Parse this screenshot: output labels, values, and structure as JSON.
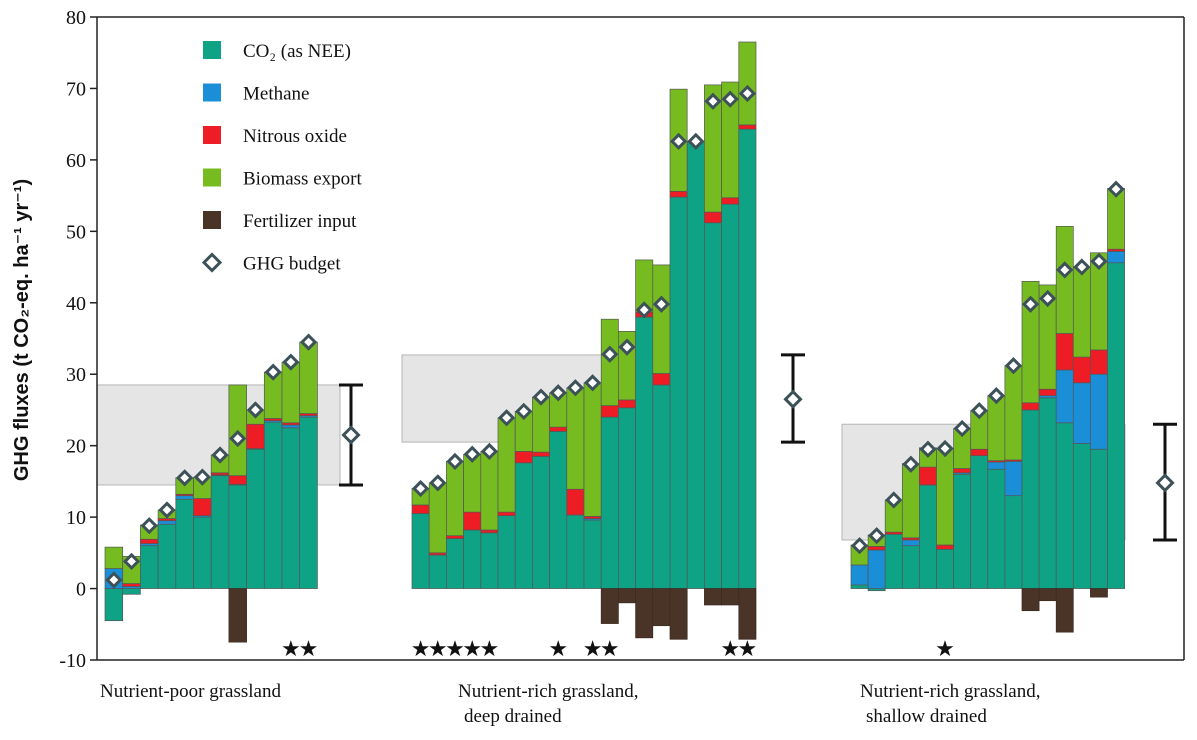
{
  "chart_data": {
    "type": "bar",
    "stacked": true,
    "ylabel": "GHG fluxes (t CO₂-eq. ha⁻¹ yr⁻¹)",
    "ylim": [
      -10,
      80
    ],
    "yticks": [
      -10,
      0,
      10,
      20,
      30,
      40,
      50,
      60,
      70,
      80
    ],
    "grid": false,
    "legend_position": "top-left",
    "legend": [
      {
        "key": "co2",
        "label": "CO₂ (as NEE)",
        "color": "#0fa386"
      },
      {
        "key": "methane",
        "label": "Methane",
        "color": "#1a8fd8"
      },
      {
        "key": "n2o",
        "label": "Nitrous oxide",
        "color": "#ee1c24"
      },
      {
        "key": "biomass",
        "label": "Biomass export",
        "color": "#76bc21"
      },
      {
        "key": "fertilizer",
        "label": "Fertilizer input",
        "color": "#4a3428"
      },
      {
        "key": "budget",
        "label": "GHG budget",
        "color": "#3d5158",
        "marker": "diamond"
      }
    ],
    "groups": [
      {
        "label_lines": [
          "Nutrient-poor grassland"
        ],
        "mean": 21.5,
        "range": [
          14.5,
          28.5
        ],
        "sites": [
          {
            "co2": -4.5,
            "methane": 2.8,
            "n2o": 0,
            "biomass": 3.0,
            "fertilizer": 0,
            "budget": 1.2,
            "star": false
          },
          {
            "co2": -0.8,
            "methane": 0.3,
            "n2o": 0.4,
            "biomass": 3.8,
            "fertilizer": 0,
            "budget": 3.8,
            "star": false
          },
          {
            "co2": 6.0,
            "methane": 0.3,
            "n2o": 0.6,
            "biomass": 2.0,
            "fertilizer": 0,
            "budget": 8.8,
            "star": false
          },
          {
            "co2": 9.0,
            "methane": 0.5,
            "n2o": 0.3,
            "biomass": 1.2,
            "fertilizer": 0,
            "budget": 11.0,
            "star": false
          },
          {
            "co2": 12.5,
            "methane": 0.5,
            "n2o": 0.2,
            "biomass": 2.3,
            "fertilizer": 0,
            "budget": 15.5,
            "star": false
          },
          {
            "co2": 10.0,
            "methane": 0.2,
            "n2o": 2.4,
            "biomass": 3.0,
            "fertilizer": 0,
            "budget": 15.6,
            "star": false
          },
          {
            "co2": 15.8,
            "methane": 0.1,
            "n2o": 0.3,
            "biomass": 2.5,
            "fertilizer": 0,
            "budget": 18.7,
            "star": false
          },
          {
            "co2": 14.5,
            "methane": 0.1,
            "n2o": 1.2,
            "biomass": 12.7,
            "fertilizer": -7.5,
            "budget": 21.0,
            "star": false
          },
          {
            "co2": 19.5,
            "methane": 0.1,
            "n2o": 3.4,
            "biomass": 2.0,
            "fertilizer": 0,
            "budget": 25.0,
            "star": false
          },
          {
            "co2": 23.3,
            "methane": 0.2,
            "n2o": 0.3,
            "biomass": 6.5,
            "fertilizer": 0,
            "budget": 30.3,
            "star": false
          },
          {
            "co2": 22.5,
            "methane": 0.4,
            "n2o": 0.3,
            "biomass": 8.5,
            "fertilizer": 0,
            "budget": 31.7,
            "star": true
          },
          {
            "co2": 24.0,
            "methane": 0.2,
            "n2o": 0.3,
            "biomass": 10.0,
            "fertilizer": 0,
            "budget": 34.5,
            "star": true
          }
        ]
      },
      {
        "label_lines": [
          "Nutrient-rich grassland,",
          "deep drained"
        ],
        "mean": 26.5,
        "range": [
          20.5,
          32.7
        ],
        "sites": [
          {
            "co2": 10.5,
            "methane": 0,
            "n2o": 1.2,
            "biomass": 2.3,
            "fertilizer": 0,
            "budget": 14.0,
            "star": true
          },
          {
            "co2": 4.7,
            "methane": 0,
            "n2o": 0.3,
            "biomass": 9.8,
            "fertilizer": 0,
            "budget": 14.8,
            "star": true
          },
          {
            "co2": 7.0,
            "methane": 0,
            "n2o": 0.4,
            "biomass": 10.4,
            "fertilizer": 0,
            "budget": 17.8,
            "star": true
          },
          {
            "co2": 8.2,
            "methane": 0,
            "n2o": 2.5,
            "biomass": 8.1,
            "fertilizer": 0,
            "budget": 18.8,
            "star": true
          },
          {
            "co2": 7.8,
            "methane": 0,
            "n2o": 0.4,
            "biomass": 11.0,
            "fertilizer": 0,
            "budget": 19.2,
            "star": true
          },
          {
            "co2": 10.2,
            "methane": 0,
            "n2o": 0.5,
            "biomass": 13.2,
            "fertilizer": 0,
            "budget": 23.9,
            "star": false
          },
          {
            "co2": 17.6,
            "methane": 0,
            "n2o": 1.6,
            "biomass": 5.6,
            "fertilizer": 0,
            "budget": 24.8,
            "star": false
          },
          {
            "co2": 18.5,
            "methane": 0,
            "n2o": 0.6,
            "biomass": 7.7,
            "fertilizer": 0,
            "budget": 26.8,
            "star": false
          },
          {
            "co2": 22.0,
            "methane": 0,
            "n2o": 0.6,
            "biomass": 4.8,
            "fertilizer": 0,
            "budget": 27.4,
            "star": true
          },
          {
            "co2": 10.3,
            "methane": 0,
            "n2o": 3.6,
            "biomass": 14.2,
            "fertilizer": 0,
            "budget": 28.1,
            "star": false
          },
          {
            "co2": 9.6,
            "methane": 0.2,
            "n2o": 0.3,
            "biomass": 18.7,
            "fertilizer": 0,
            "budget": 28.8,
            "star": true
          },
          {
            "co2": 24.0,
            "methane": 0,
            "n2o": 1.6,
            "biomass": 12.1,
            "fertilizer": -4.9,
            "budget": 32.8,
            "star": true
          },
          {
            "co2": 25.3,
            "methane": 0,
            "n2o": 1.1,
            "biomass": 9.6,
            "fertilizer": -2.0,
            "budget": 33.8,
            "star": false
          },
          {
            "co2": 38.0,
            "methane": 0,
            "n2o": 0.7,
            "biomass": 7.3,
            "fertilizer": -6.9,
            "budget": 39.0,
            "star": false
          },
          {
            "co2": 28.5,
            "methane": 0,
            "n2o": 1.6,
            "biomass": 15.2,
            "fertilizer": -5.2,
            "budget": 39.8,
            "star": false
          },
          {
            "co2": 54.8,
            "methane": 0,
            "n2o": 0.8,
            "biomass": 14.3,
            "fertilizer": -7.1,
            "budget": 62.6,
            "star": false
          },
          {
            "co2": 62.5,
            "methane": 0,
            "n2o": 0,
            "biomass": 0,
            "fertilizer": 0,
            "budget": 62.6,
            "star": false
          },
          {
            "co2": 51.2,
            "methane": 0,
            "n2o": 1.5,
            "biomass": 17.8,
            "fertilizer": -2.3,
            "budget": 68.2,
            "star": false
          },
          {
            "co2": 53.8,
            "methane": 0,
            "n2o": 0.9,
            "biomass": 16.2,
            "fertilizer": -2.3,
            "budget": 68.5,
            "star": true
          },
          {
            "co2": 64.3,
            "methane": 0,
            "n2o": 0.6,
            "biomass": 11.6,
            "fertilizer": -7.1,
            "budget": 69.3,
            "star": true
          }
        ]
      },
      {
        "label_lines": [
          "Nutrient-rich grassland,",
          "shallow drained"
        ],
        "mean": 14.8,
        "range": [
          6.8,
          23.0
        ],
        "sites": [
          {
            "co2": 0.5,
            "methane": 2.8,
            "n2o": 0,
            "biomass": 2.8,
            "fertilizer": 0,
            "budget": 6.0,
            "star": false
          },
          {
            "co2": -0.3,
            "methane": 5.4,
            "n2o": 0.5,
            "biomass": 1.6,
            "fertilizer": 0,
            "budget": 7.4,
            "star": false
          },
          {
            "co2": 7.6,
            "methane": 0,
            "n2o": 0.3,
            "biomass": 4.5,
            "fertilizer": 0,
            "budget": 12.4,
            "star": false
          },
          {
            "co2": 6.0,
            "methane": 0.8,
            "n2o": 0.3,
            "biomass": 10.4,
            "fertilizer": 0,
            "budget": 17.4,
            "star": false
          },
          {
            "co2": 14.5,
            "methane": 0,
            "n2o": 2.5,
            "biomass": 2.7,
            "fertilizer": 0,
            "budget": 19.5,
            "star": false
          },
          {
            "co2": 5.5,
            "methane": 0,
            "n2o": 0.6,
            "biomass": 13.5,
            "fertilizer": 0,
            "budget": 19.6,
            "star": true
          },
          {
            "co2": 16.0,
            "methane": 0.2,
            "n2o": 0.6,
            "biomass": 5.6,
            "fertilizer": 0,
            "budget": 22.4,
            "star": false
          },
          {
            "co2": 18.6,
            "methane": 0,
            "n2o": 0.9,
            "biomass": 5.4,
            "fertilizer": 0,
            "budget": 24.9,
            "star": false
          },
          {
            "co2": 16.7,
            "methane": 1.0,
            "n2o": 0.2,
            "biomass": 9.1,
            "fertilizer": 0,
            "budget": 27.0,
            "star": false
          },
          {
            "co2": 13.0,
            "methane": 4.8,
            "n2o": 0.2,
            "biomass": 13.2,
            "fertilizer": 0,
            "budget": 31.2,
            "star": false
          },
          {
            "co2": 25.0,
            "methane": 0,
            "n2o": 1.0,
            "biomass": 17.0,
            "fertilizer": -3.1,
            "budget": 39.8,
            "star": false
          },
          {
            "co2": 26.7,
            "methane": 0.3,
            "n2o": 0.9,
            "biomass": 14.6,
            "fertilizer": -1.7,
            "budget": 40.6,
            "star": false
          },
          {
            "co2": 23.2,
            "methane": 7.4,
            "n2o": 5.1,
            "biomass": 15.0,
            "fertilizer": -6.1,
            "budget": 44.6,
            "star": false
          },
          {
            "co2": 20.3,
            "methane": 8.5,
            "n2o": 3.6,
            "biomass": 12.5,
            "fertilizer": 0,
            "budget": 45.0,
            "star": false
          },
          {
            "co2": 19.5,
            "methane": 10.5,
            "n2o": 3.4,
            "biomass": 13.6,
            "fertilizer": -1.2,
            "budget": 45.8,
            "star": false
          },
          {
            "co2": 45.6,
            "methane": 1.6,
            "n2o": 0.3,
            "biomass": 8.5,
            "fertilizer": 0,
            "budget": 55.9,
            "star": false
          }
        ]
      }
    ]
  }
}
